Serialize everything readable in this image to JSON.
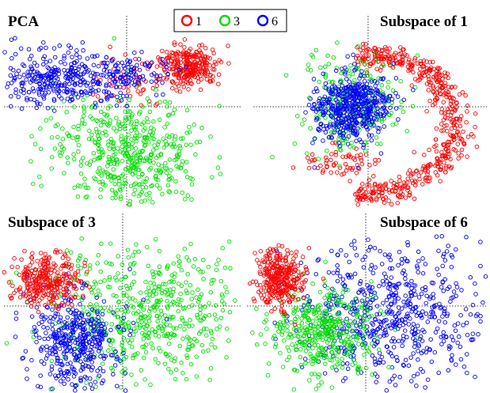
{
  "legend": {
    "items": [
      {
        "label": "1",
        "color": "#ff0000"
      },
      {
        "label": "3",
        "color": "#00e000"
      },
      {
        "label": "6",
        "color": "#0000ff"
      }
    ]
  },
  "chart_data": [
    {
      "type": "scatter",
      "title": "PCA",
      "axes": "crosshair dotted lines, no ticks",
      "series": [
        {
          "name": "1",
          "color": "#ff0000",
          "clusters": [
            {
              "cx": 0.78,
              "cy": 0.18,
              "sx": 0.06,
              "sy": 0.06,
              "n": 260,
              "shape": "gauss"
            },
            {
              "cx": 0.55,
              "cy": 0.27,
              "sx": 0.1,
              "sy": 0.06,
              "n": 60,
              "shape": "gauss"
            }
          ]
        },
        {
          "name": "3",
          "color": "#00e000",
          "clusters": [
            {
              "cx": 0.55,
              "cy": 0.7,
              "sx": 0.15,
              "sy": 0.17,
              "n": 420,
              "shape": "gauss"
            },
            {
              "cx": 0.35,
              "cy": 0.6,
              "sx": 0.12,
              "sy": 0.12,
              "n": 80,
              "shape": "gauss"
            }
          ]
        },
        {
          "name": "6",
          "color": "#0000ff",
          "clusters": [
            {
              "cx": 0.25,
              "cy": 0.25,
              "sx": 0.16,
              "sy": 0.08,
              "n": 380,
              "shape": "gauss"
            },
            {
              "cx": 0.55,
              "cy": 0.22,
              "sx": 0.08,
              "sy": 0.05,
              "n": 60,
              "shape": "gauss"
            }
          ]
        }
      ]
    },
    {
      "type": "scatter",
      "title": "Subspace of 1",
      "axes": "crosshair dotted lines, no ticks",
      "series": [
        {
          "name": "1",
          "color": "#ff0000",
          "clusters": [
            {
              "cx": 0.5,
              "cy": 0.52,
              "r": 0.4,
              "thick": 0.08,
              "a0": -100,
              "a1": 100,
              "n": 520,
              "shape": "ring"
            },
            {
              "cx": 0.38,
              "cy": 0.75,
              "sx": 0.08,
              "sy": 0.05,
              "n": 60,
              "shape": "gauss"
            }
          ]
        },
        {
          "name": "3",
          "color": "#00e000",
          "clusters": [
            {
              "cx": 0.42,
              "cy": 0.42,
              "sx": 0.1,
              "sy": 0.14,
              "n": 280,
              "shape": "gauss"
            }
          ]
        },
        {
          "name": "6",
          "color": "#0000ff",
          "clusters": [
            {
              "cx": 0.42,
              "cy": 0.42,
              "sx": 0.08,
              "sy": 0.1,
              "n": 480,
              "shape": "gauss"
            }
          ]
        }
      ]
    },
    {
      "type": "scatter",
      "title": "Subspace of 3",
      "axes": "crosshair dotted lines, no ticks",
      "series": [
        {
          "name": "3",
          "color": "#00e000",
          "clusters": [
            {
              "cx": 0.6,
              "cy": 0.5,
              "sx": 0.2,
              "sy": 0.22,
              "n": 560,
              "shape": "gauss"
            }
          ]
        },
        {
          "name": "6",
          "color": "#0000ff",
          "clusters": [
            {
              "cx": 0.3,
              "cy": 0.68,
              "sx": 0.09,
              "sy": 0.15,
              "n": 420,
              "shape": "gauss"
            }
          ]
        },
        {
          "name": "1",
          "color": "#ff0000",
          "clusters": [
            {
              "cx": 0.18,
              "cy": 0.3,
              "sx": 0.07,
              "sy": 0.08,
              "n": 300,
              "shape": "gauss"
            }
          ]
        }
      ]
    },
    {
      "type": "scatter",
      "title": "Subspace of 6",
      "axes": "crosshair dotted lines, no ticks",
      "series": [
        {
          "name": "6",
          "color": "#0000ff",
          "clusters": [
            {
              "cx": 0.6,
              "cy": 0.5,
              "sx": 0.2,
              "sy": 0.22,
              "n": 620,
              "shape": "gauss"
            }
          ]
        },
        {
          "name": "3",
          "color": "#00e000",
          "clusters": [
            {
              "cx": 0.32,
              "cy": 0.62,
              "sx": 0.11,
              "sy": 0.13,
              "n": 420,
              "shape": "gauss"
            }
          ]
        },
        {
          "name": "1",
          "color": "#ff0000",
          "clusters": [
            {
              "cx": 0.14,
              "cy": 0.28,
              "sx": 0.05,
              "sy": 0.09,
              "n": 320,
              "shape": "gauss"
            }
          ]
        }
      ]
    }
  ]
}
